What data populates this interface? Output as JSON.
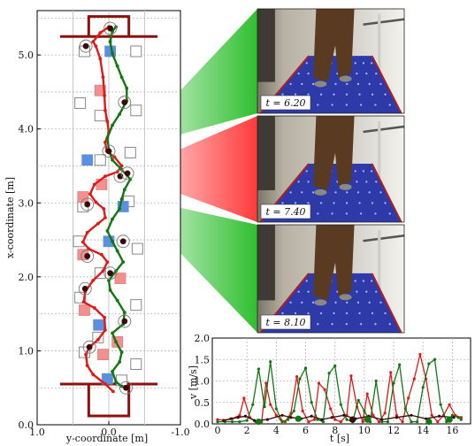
{
  "chart_data": [
    {
      "type": "scatter",
      "xlabel": "y-coordinate [m]",
      "ylabel": "x-coordinate [m]",
      "xlim": [
        1.0,
        -1.0
      ],
      "ylim": [
        0.0,
        5.6
      ],
      "x_tick_labels": [
        "1.0",
        "0.0",
        "-1.0"
      ],
      "y_tick_labels": [
        "0.0",
        "1.0",
        "2.0",
        "3.0",
        "4.0",
        "5.0"
      ],
      "grid": true,
      "colors": {
        "red": "#e11818",
        "green": "#117711",
        "dark": "#3a0a0a",
        "blue_square": "#5b8fe0",
        "red_square": "#f29090",
        "box": "#8b1010"
      },
      "red_trajectory": [
        [
          -0.06,
          0.45
        ],
        [
          0.05,
          0.55
        ],
        [
          0.22,
          0.68
        ],
        [
          0.3,
          0.8
        ],
        [
          0.32,
          0.95
        ],
        [
          0.27,
          1.05
        ],
        [
          0.15,
          1.15
        ],
        [
          0.05,
          1.28
        ],
        [
          0.06,
          1.45
        ],
        [
          0.2,
          1.58
        ],
        [
          0.35,
          1.66
        ],
        [
          0.33,
          1.8
        ],
        [
          0.22,
          1.95
        ],
        [
          0.08,
          2.08
        ],
        [
          0.02,
          2.2
        ],
        [
          0.1,
          2.3
        ],
        [
          0.28,
          2.38
        ],
        [
          0.36,
          2.47
        ],
        [
          0.3,
          2.6
        ],
        [
          0.15,
          2.72
        ],
        [
          0.05,
          2.8
        ],
        [
          0.07,
          2.92
        ],
        [
          0.18,
          3.01
        ],
        [
          0.26,
          3.12
        ],
        [
          0.2,
          3.25
        ],
        [
          0.05,
          3.36
        ],
        [
          -0.12,
          3.42
        ],
        [
          -0.18,
          3.5
        ],
        [
          -0.08,
          3.62
        ],
        [
          0.03,
          3.7
        ],
        [
          0.05,
          3.82
        ],
        [
          0.0,
          3.95
        ],
        [
          0.02,
          4.1
        ],
        [
          0.05,
          4.25
        ],
        [
          0.06,
          4.45
        ],
        [
          0.08,
          4.7
        ],
        [
          0.12,
          4.95
        ],
        [
          0.18,
          5.12
        ],
        [
          0.22,
          5.18
        ],
        [
          0.12,
          5.3
        ],
        [
          0.0,
          5.38
        ]
      ],
      "green_trajectory": [
        [
          -0.18,
          0.52
        ],
        [
          -0.1,
          0.58
        ],
        [
          -0.05,
          0.72
        ],
        [
          -0.15,
          0.85
        ],
        [
          -0.18,
          0.98
        ],
        [
          -0.1,
          1.12
        ],
        [
          -0.05,
          1.24
        ],
        [
          -0.2,
          1.36
        ],
        [
          -0.22,
          1.52
        ],
        [
          -0.12,
          1.68
        ],
        [
          -0.02,
          1.82
        ],
        [
          0.0,
          1.95
        ],
        [
          -0.1,
          2.08
        ],
        [
          -0.2,
          2.2
        ],
        [
          -0.12,
          2.35
        ],
        [
          -0.05,
          2.48
        ],
        [
          0.02,
          2.62
        ],
        [
          -0.05,
          2.78
        ],
        [
          -0.15,
          2.92
        ],
        [
          -0.18,
          3.05
        ],
        [
          -0.22,
          3.18
        ],
        [
          -0.3,
          3.32
        ],
        [
          -0.18,
          3.45
        ],
        [
          -0.05,
          3.58
        ],
        [
          0.0,
          3.72
        ],
        [
          0.02,
          3.88
        ],
        [
          -0.05,
          4.05
        ],
        [
          -0.15,
          4.2
        ],
        [
          -0.25,
          4.38
        ],
        [
          -0.25,
          4.55
        ],
        [
          -0.18,
          4.7
        ],
        [
          -0.12,
          4.85
        ],
        [
          -0.05,
          5.02
        ],
        [
          -0.02,
          5.18
        ],
        [
          -0.05,
          5.32
        ],
        [
          -0.1,
          5.38
        ]
      ],
      "foot_markers": [
        [
          -0.24,
          0.5
        ],
        [
          0.27,
          1.05
        ],
        [
          -0.22,
          1.4
        ],
        [
          0.33,
          1.84
        ],
        [
          -0.02,
          2.05
        ],
        [
          0.3,
          2.28
        ],
        [
          -0.2,
          2.48
        ],
        [
          0.3,
          2.98
        ],
        [
          -0.16,
          3.36
        ],
        [
          -0.26,
          3.4
        ],
        [
          0.0,
          3.7
        ],
        [
          -0.22,
          4.36
        ],
        [
          0.32,
          5.12
        ],
        [
          -0.02,
          5.36
        ]
      ],
      "squares_open": [
        [
          0.34,
          5.05
        ],
        [
          -0.38,
          5.05
        ],
        [
          0.4,
          4.35
        ],
        [
          -0.38,
          4.25
        ],
        [
          0.12,
          4.18
        ],
        [
          -0.3,
          3.68
        ],
        [
          0.12,
          3.58
        ],
        [
          -0.28,
          3.02
        ],
        [
          0.36,
          2.95
        ],
        [
          0.42,
          2.48
        ],
        [
          -0.4,
          2.38
        ],
        [
          0.12,
          2.05
        ],
        [
          0.4,
          1.72
        ],
        [
          -0.38,
          1.62
        ],
        [
          0.15,
          1.18
        ],
        [
          0.34,
          0.98
        ],
        [
          -0.38,
          0.82
        ],
        [
          -0.18,
          0.6
        ]
      ],
      "squares_blue": [
        [
          -0.02,
          5.05
        ],
        [
          0.3,
          3.58
        ],
        [
          -0.2,
          2.95
        ],
        [
          0.0,
          2.48
        ],
        [
          0.14,
          1.35
        ],
        [
          0.02,
          0.62
        ]
      ],
      "squares_red": [
        [
          0.12,
          4.52
        ],
        [
          0.1,
          3.25
        ],
        [
          0.36,
          3.08
        ],
        [
          0.36,
          2.3
        ],
        [
          -0.16,
          1.98
        ],
        [
          0.34,
          1.55
        ],
        [
          -0.12,
          1.12
        ],
        [
          0.08,
          0.95
        ]
      ]
    },
    {
      "type": "line",
      "xlabel": "t [s]",
      "ylabel": "v [m/s]",
      "xlim": [
        0,
        17
      ],
      "ylim": [
        0.0,
        2.0
      ],
      "x_tick_labels": [
        "0",
        "2",
        "4",
        "6",
        "8",
        "10",
        "12",
        "14",
        "16"
      ],
      "y_tick_labels": [
        "0.0",
        "0.5",
        "1.0",
        "1.5",
        "2.0"
      ],
      "grid": true,
      "series": [
        {
          "color": "#e11818",
          "x": [
            0,
            0.5,
            1.0,
            1.5,
            1.8,
            2.2,
            2.6,
            3.0,
            3.3,
            3.6,
            4.0,
            4.3,
            4.6,
            5.0,
            5.4,
            5.8,
            6.2,
            6.6,
            6.9,
            7.3,
            7.7,
            8.0,
            8.4,
            8.8,
            9.1,
            9.5,
            9.9,
            10.2,
            10.6,
            11.0,
            11.4,
            11.8,
            12.2,
            12.6,
            13.0,
            13.4,
            13.8,
            14.2,
            14.6,
            15.0,
            15.4,
            15.8,
            16.2,
            16.6
          ],
          "y": [
            0.1,
            0.08,
            0.12,
            0.2,
            0.6,
            0.15,
            0.05,
            0.05,
            0.95,
            0.45,
            0.2,
            0.1,
            0.05,
            0.25,
            1.1,
            0.3,
            0.05,
            0.1,
            0.95,
            0.8,
            0.35,
            0.1,
            0.05,
            0.2,
            1.12,
            0.4,
            0.05,
            0.7,
            0.2,
            0.05,
            0.25,
            1.2,
            0.2,
            0.05,
            0.6,
            1.05,
            1.62,
            1.05,
            0.2,
            0.05,
            0.2,
            0.45,
            0.2,
            0.15
          ]
        },
        {
          "color": "#117711",
          "x": [
            0,
            0.5,
            1.0,
            1.5,
            2.0,
            2.4,
            2.8,
            3.2,
            3.6,
            4.0,
            4.4,
            4.8,
            5.2,
            5.6,
            6.0,
            6.4,
            6.8,
            7.2,
            7.6,
            8.0,
            8.4,
            8.8,
            9.2,
            9.6,
            10.0,
            10.4,
            10.8,
            11.2,
            11.6,
            12.0,
            12.4,
            12.8,
            13.2,
            13.6,
            14.0,
            14.4,
            14.8,
            15.2,
            15.6,
            16.0,
            16.4,
            16.6
          ],
          "y": [
            0.05,
            0.05,
            0.05,
            0.05,
            0.08,
            0.45,
            1.28,
            0.4,
            1.45,
            0.35,
            0.05,
            0.1,
            0.3,
            1.05,
            1.3,
            0.5,
            0.1,
            0.05,
            1.18,
            1.35,
            0.45,
            0.1,
            0.05,
            0.55,
            0.3,
            0.05,
            1.0,
            0.05,
            0.05,
            0.95,
            1.38,
            0.35,
            0.05,
            0.05,
            0.85,
            1.4,
            1.5,
            0.45,
            0.05,
            0.2,
            0.15,
            0.1
          ]
        },
        {
          "color": "#3a0a0a",
          "x": [
            0.4,
            0.9,
            1.4,
            1.9,
            2.5,
            3.4,
            4.4,
            5.0,
            5.7,
            6.4,
            7.1,
            7.8,
            8.6,
            9.4,
            10.3,
            11.2,
            12.2,
            13.2,
            14.2,
            15.1,
            16.1
          ],
          "y": [
            0.08,
            0.12,
            0.15,
            0.18,
            0.08,
            0.1,
            0.2,
            0.15,
            0.12,
            0.18,
            0.1,
            0.15,
            0.2,
            0.12,
            0.18,
            0.1,
            0.15,
            0.2,
            0.12,
            0.18,
            0.15
          ]
        }
      ],
      "markers": [
        {
          "x": 2.8,
          "y": 0.05,
          "color": "#117711"
        },
        {
          "x": 5.5,
          "y": 0.12,
          "color": "#117711"
        },
        {
          "x": 9.2,
          "y": 0.1,
          "color": "#3a0a0a"
        },
        {
          "x": 10.2,
          "y": 0.1,
          "color": "#117711"
        },
        {
          "x": 14.4,
          "y": 0.05,
          "color": "#117711"
        },
        {
          "x": 15.8,
          "y": 0.1,
          "color": "#117711"
        }
      ]
    }
  ],
  "photos": [
    {
      "label": "t = 6.20",
      "fan_color": "#2fbf2f",
      "track_y": 3.72
    },
    {
      "label": "t = 7.40",
      "fan_color": "#ff3a3a",
      "track_y": 3.4
    },
    {
      "label": "t = 8.10",
      "fan_color": "#2fbf2f",
      "track_y": 3.1
    }
  ]
}
